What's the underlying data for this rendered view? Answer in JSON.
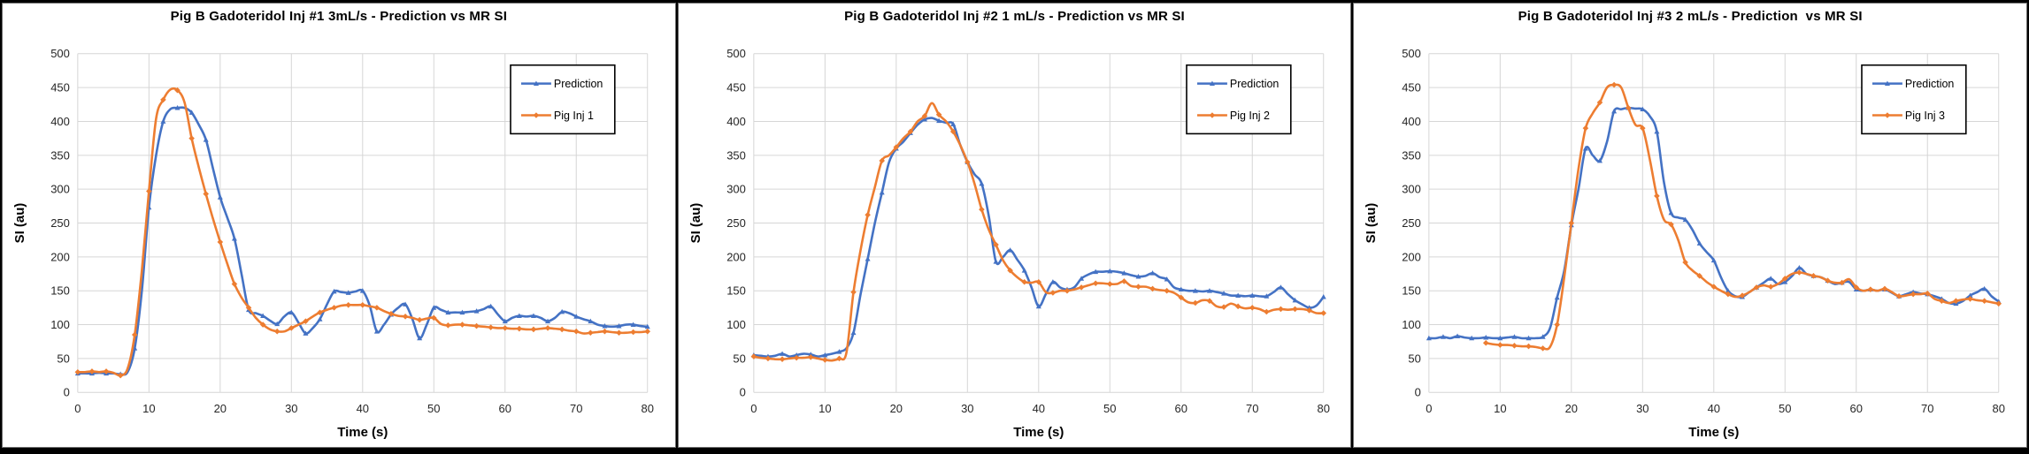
{
  "figure": {
    "background": "#000000",
    "panel_background": "#FFFFFF"
  },
  "colors": {
    "prediction_blue": "#4472C4",
    "pig_orange": "#ED7D31",
    "gridline": "#D6D6D6",
    "tick_text": "#262626",
    "axis_title_text": "#000000",
    "legend_border": "#000000"
  },
  "chart_data": [
    {
      "type": "line",
      "title": "Pig B Gadoteridol Inj #1 3mL/s - Prediction vs MR SI",
      "xlabel": "Time (s)",
      "ylabel": "SI (au)",
      "xlim": [
        0,
        80
      ],
      "ylim": [
        0,
        500
      ],
      "xticks": [
        0,
        10,
        20,
        30,
        40,
        50,
        60,
        70,
        80
      ],
      "yticks": [
        0,
        50,
        100,
        150,
        200,
        250,
        300,
        350,
        400,
        450,
        500
      ],
      "grid": true,
      "legend_position": "top-right",
      "series": [
        {
          "name": "Prediction",
          "color": "#4472C4",
          "marker": "triangle",
          "x_start": 0,
          "x_step": 1,
          "y": [
            28,
            28,
            28,
            29,
            28,
            28,
            27,
            30,
            65,
            150,
            273,
            350,
            400,
            418,
            420,
            420,
            413,
            395,
            373,
            330,
            288,
            258,
            227,
            175,
            122,
            117,
            113,
            106,
            101,
            112,
            118,
            103,
            87,
            95,
            108,
            130,
            149,
            148,
            147,
            149,
            150,
            128,
            90,
            100,
            115,
            125,
            130,
            108,
            80,
            100,
            125,
            122,
            118,
            118,
            118,
            119,
            120,
            123,
            127,
            115,
            105,
            110,
            113,
            112,
            113,
            110,
            105,
            110,
            119,
            117,
            112,
            108,
            105,
            100,
            98,
            97,
            98,
            100,
            100,
            98,
            97
          ]
        },
        {
          "name": "Pig Inj 1",
          "color": "#ED7D31",
          "marker": "diamond",
          "x_start": 0,
          "x_step": 1,
          "y": [
            30,
            30,
            31,
            30,
            31,
            29,
            25,
            35,
            85,
            180,
            297,
            404,
            432,
            447,
            446,
            428,
            375,
            332,
            293,
            256,
            222,
            190,
            160,
            140,
            125,
            110,
            100,
            93,
            90,
            90,
            95,
            100,
            105,
            112,
            118,
            122,
            125,
            128,
            129,
            129,
            129,
            127,
            125,
            120,
            116,
            113,
            112,
            110,
            107,
            109,
            110,
            101,
            99,
            100,
            100,
            99,
            98,
            97,
            96,
            95,
            95,
            94,
            94,
            93,
            93,
            94,
            95,
            94,
            93,
            91,
            90,
            87,
            88,
            89,
            90,
            89,
            88,
            88,
            89,
            89,
            90
          ]
        }
      ]
    },
    {
      "type": "line",
      "title": "Pig B Gadoteridol Inj #2 1 mL/s - Prediction vs MR SI",
      "xlabel": "Time (s)",
      "ylabel": "SI (au)",
      "xlim": [
        0,
        80
      ],
      "ylim": [
        0,
        500
      ],
      "xticks": [
        0,
        10,
        20,
        30,
        40,
        50,
        60,
        70,
        80
      ],
      "yticks": [
        0,
        50,
        100,
        150,
        200,
        250,
        300,
        350,
        400,
        450,
        500
      ],
      "grid": true,
      "legend_position": "top-right",
      "series": [
        {
          "name": "Prediction",
          "color": "#4472C4",
          "marker": "triangle",
          "x_start": 0,
          "x_step": 1,
          "y": [
            55,
            54,
            53,
            54,
            57,
            53,
            55,
            57,
            56,
            53,
            55,
            57,
            60,
            65,
            88,
            145,
            197,
            250,
            295,
            340,
            360,
            370,
            383,
            395,
            403,
            405,
            401,
            398,
            396,
            365,
            340,
            322,
            308,
            260,
            193,
            200,
            210,
            196,
            180,
            155,
            127,
            145,
            163,
            155,
            152,
            155,
            168,
            174,
            178,
            178,
            179,
            178,
            176,
            173,
            171,
            172,
            176,
            170,
            167,
            155,
            152,
            150,
            150,
            149,
            150,
            148,
            146,
            143,
            143,
            142,
            143,
            142,
            142,
            148,
            155,
            145,
            136,
            130,
            125,
            128,
            141
          ]
        },
        {
          "name": "Pig Inj 2",
          "color": "#ED7D31",
          "marker": "diamond",
          "x_start": 0,
          "x_step": 1,
          "y": [
            53,
            51,
            50,
            49,
            49,
            50,
            51,
            51,
            52,
            50,
            48,
            47,
            50,
            58,
            148,
            210,
            262,
            303,
            342,
            350,
            362,
            375,
            385,
            400,
            408,
            427,
            410,
            400,
            385,
            365,
            340,
            308,
            270,
            240,
            218,
            195,
            180,
            170,
            163,
            162,
            163,
            148,
            147,
            150,
            150,
            152,
            155,
            158,
            161,
            161,
            160,
            160,
            164,
            157,
            156,
            156,
            153,
            151,
            150,
            147,
            140,
            133,
            132,
            136,
            135,
            127,
            126,
            131,
            127,
            124,
            125,
            123,
            119,
            122,
            123,
            122,
            123,
            123,
            121,
            117,
            117
          ]
        }
      ]
    },
    {
      "type": "line",
      "title": "Pig B Gadoteridol Inj #3 2 mL/s - Prediction  vs MR SI",
      "xlabel": "Time (s)",
      "ylabel": "SI (au)",
      "xlim": [
        0,
        80
      ],
      "ylim": [
        0,
        500
      ],
      "xticks": [
        0,
        10,
        20,
        30,
        40,
        50,
        60,
        70,
        80
      ],
      "yticks": [
        0,
        50,
        100,
        150,
        200,
        250,
        300,
        350,
        400,
        450,
        500
      ],
      "grid": true,
      "legend_position": "top-right",
      "series": [
        {
          "name": "Prediction",
          "color": "#4472C4",
          "marker": "triangle",
          "x_start": 0,
          "x_step": 1,
          "y": [
            80,
            80,
            82,
            80,
            83,
            81,
            80,
            80,
            81,
            80,
            80,
            81,
            82,
            80,
            80,
            80,
            82,
            95,
            140,
            180,
            247,
            300,
            360,
            350,
            342,
            370,
            415,
            418,
            420,
            419,
            418,
            408,
            385,
            310,
            265,
            258,
            255,
            240,
            220,
            207,
            195,
            170,
            150,
            142,
            141,
            148,
            155,
            162,
            168,
            160,
            163,
            172,
            184,
            175,
            172,
            170,
            165,
            160,
            162,
            163,
            152,
            150,
            152,
            150,
            152,
            147,
            142,
            145,
            148,
            146,
            145,
            142,
            138,
            132,
            131,
            135,
            143,
            148,
            153,
            142,
            134
          ]
        },
        {
          "name": "Pig Inj 3",
          "color": "#ED7D31",
          "marker": "diamond",
          "x_start": 8,
          "x_step": 1,
          "y": [
            73,
            71,
            70,
            70,
            69,
            68,
            68,
            67,
            65,
            67,
            100,
            170,
            250,
            330,
            390,
            412,
            428,
            450,
            454,
            450,
            420,
            395,
            390,
            345,
            290,
            255,
            248,
            225,
            192,
            180,
            172,
            163,
            156,
            150,
            145,
            141,
            143,
            148,
            155,
            158,
            156,
            160,
            168,
            175,
            177,
            175,
            172,
            170,
            165,
            162,
            162,
            167,
            155,
            150,
            152,
            150,
            153,
            148,
            142,
            143,
            145,
            145,
            146,
            138,
            135,
            132,
            135,
            137,
            138,
            136,
            135,
            133,
            131
          ]
        }
      ]
    }
  ]
}
